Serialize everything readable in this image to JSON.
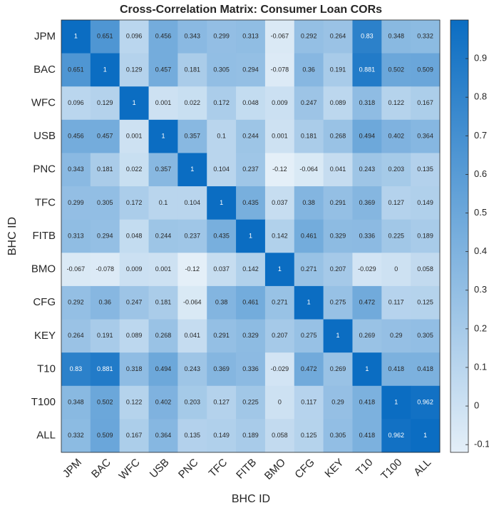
{
  "chart_data": {
    "type": "heatmap",
    "title": "Cross-Correlation Matrix: Consumer Loan CORs",
    "xlabel": "BHC ID",
    "ylabel": "BHC ID",
    "x_categories": [
      "JPM",
      "BAC",
      "WFC",
      "USB",
      "PNC",
      "TFC",
      "FITB",
      "BMO",
      "CFG",
      "KEY",
      "T10",
      "T100",
      "ALL"
    ],
    "y_categories": [
      "JPM",
      "BAC",
      "WFC",
      "USB",
      "PNC",
      "TFC",
      "FITB",
      "BMO",
      "CFG",
      "KEY",
      "T10",
      "T100",
      "ALL"
    ],
    "values": [
      [
        1,
        0.651,
        0.096,
        0.456,
        0.343,
        0.299,
        0.313,
        -0.067,
        0.292,
        0.264,
        0.83,
        0.348,
        0.332
      ],
      [
        0.651,
        1,
        0.129,
        0.457,
        0.181,
        0.305,
        0.294,
        -0.078,
        0.36,
        0.191,
        0.881,
        0.502,
        0.509
      ],
      [
        0.096,
        0.129,
        1,
        0.001,
        0.022,
        0.172,
        0.048,
        0.009,
        0.247,
        0.089,
        0.318,
        0.122,
        0.167
      ],
      [
        0.456,
        0.457,
        0.001,
        1,
        0.357,
        0.1,
        0.244,
        0.001,
        0.181,
        0.268,
        0.494,
        0.402,
        0.364
      ],
      [
        0.343,
        0.181,
        0.022,
        0.357,
        1,
        0.104,
        0.237,
        -0.12,
        -0.064,
        0.041,
        0.243,
        0.203,
        0.135
      ],
      [
        0.299,
        0.305,
        0.172,
        0.1,
        0.104,
        1,
        0.435,
        0.037,
        0.38,
        0.291,
        0.369,
        0.127,
        0.149
      ],
      [
        0.313,
        0.294,
        0.048,
        0.244,
        0.237,
        0.435,
        1,
        0.142,
        0.461,
        0.329,
        0.336,
        0.225,
        0.189
      ],
      [
        -0.067,
        -0.078,
        0.009,
        0.001,
        -0.12,
        0.037,
        0.142,
        1,
        0.271,
        0.207,
        -0.029,
        0,
        0.058
      ],
      [
        0.292,
        0.36,
        0.247,
        0.181,
        -0.064,
        0.38,
        0.461,
        0.271,
        1,
        0.275,
        0.472,
        0.117,
        0.125
      ],
      [
        0.264,
        0.191,
        0.089,
        0.268,
        0.041,
        0.291,
        0.329,
        0.207,
        0.275,
        1,
        0.269,
        0.29,
        0.305
      ],
      [
        0.83,
        0.881,
        0.318,
        0.494,
        0.243,
        0.369,
        0.336,
        -0.029,
        0.472,
        0.269,
        1,
        0.418,
        0.418
      ],
      [
        0.348,
        0.502,
        0.122,
        0.402,
        0.203,
        0.127,
        0.225,
        0,
        0.117,
        0.29,
        0.418,
        1,
        0.962
      ],
      [
        0.332,
        0.509,
        0.167,
        0.364,
        0.135,
        0.149,
        0.189,
        0.058,
        0.125,
        0.305,
        0.418,
        0.962,
        1
      ]
    ],
    "colormap": [
      "#e4eff8",
      "#0b6dc2"
    ],
    "clim": [
      -0.12,
      1
    ],
    "colorbar_ticks": [
      -0.1,
      0,
      0.1,
      0.2,
      0.3,
      0.4,
      0.5,
      0.6,
      0.7,
      0.8,
      0.9
    ]
  }
}
